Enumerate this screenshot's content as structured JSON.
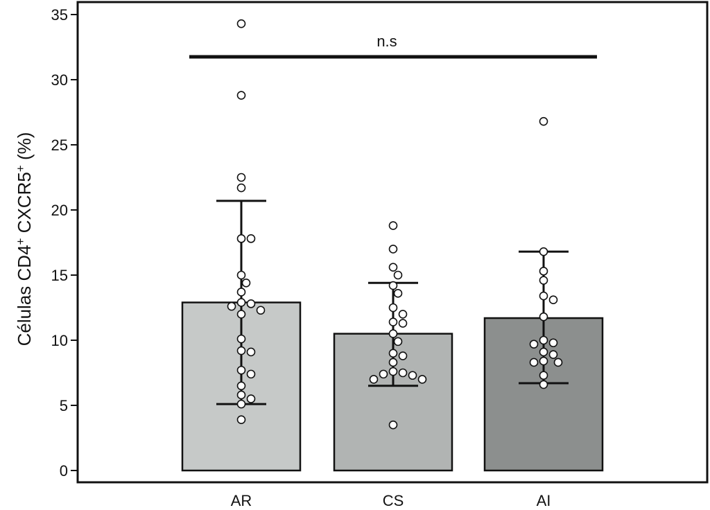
{
  "chart_data": {
    "type": "bar",
    "categories": [
      "AR",
      "CS",
      "AI"
    ],
    "values": [
      12.9,
      10.5,
      11.7
    ],
    "error_low": [
      5.1,
      6.5,
      6.7
    ],
    "error_high": [
      20.7,
      14.4,
      16.8
    ],
    "bar_colors": [
      "#c6c9c8",
      "#b1b4b3",
      "#8c8f8e"
    ],
    "points": [
      [
        34.3,
        28.8,
        22.5,
        21.7,
        17.8,
        17.8,
        15.0,
        14.4,
        13.7,
        12.9,
        12.8,
        12.6,
        12.3,
        12.0,
        10.1,
        9.2,
        9.1,
        7.7,
        7.4,
        6.5,
        5.8,
        5.5,
        5.1,
        3.9
      ],
      [
        18.8,
        17.0,
        15.6,
        15.0,
        14.2,
        13.6,
        12.5,
        12.0,
        11.4,
        11.3,
        10.5,
        9.9,
        9.0,
        8.8,
        8.3,
        7.6,
        7.5,
        7.4,
        7.3,
        7.0,
        7.0,
        3.5
      ],
      [
        26.8,
        16.8,
        15.3,
        14.6,
        13.4,
        13.1,
        11.8,
        10.0,
        9.8,
        9.7,
        9.1,
        8.9,
        8.4,
        8.3,
        8.3,
        7.3,
        6.6
      ]
    ],
    "ylabel_main": "Células CD4",
    "ylabel_sup1": "+",
    "ylabel_mid": " CXCR5",
    "ylabel_sup2": "+",
    "ylabel_tail": " (%)",
    "ylim": [
      0,
      35
    ],
    "yticks": [
      "0",
      "5",
      "10",
      "15",
      "20",
      "25",
      "30",
      "35"
    ],
    "annotation": "n.s",
    "grid": false
  }
}
